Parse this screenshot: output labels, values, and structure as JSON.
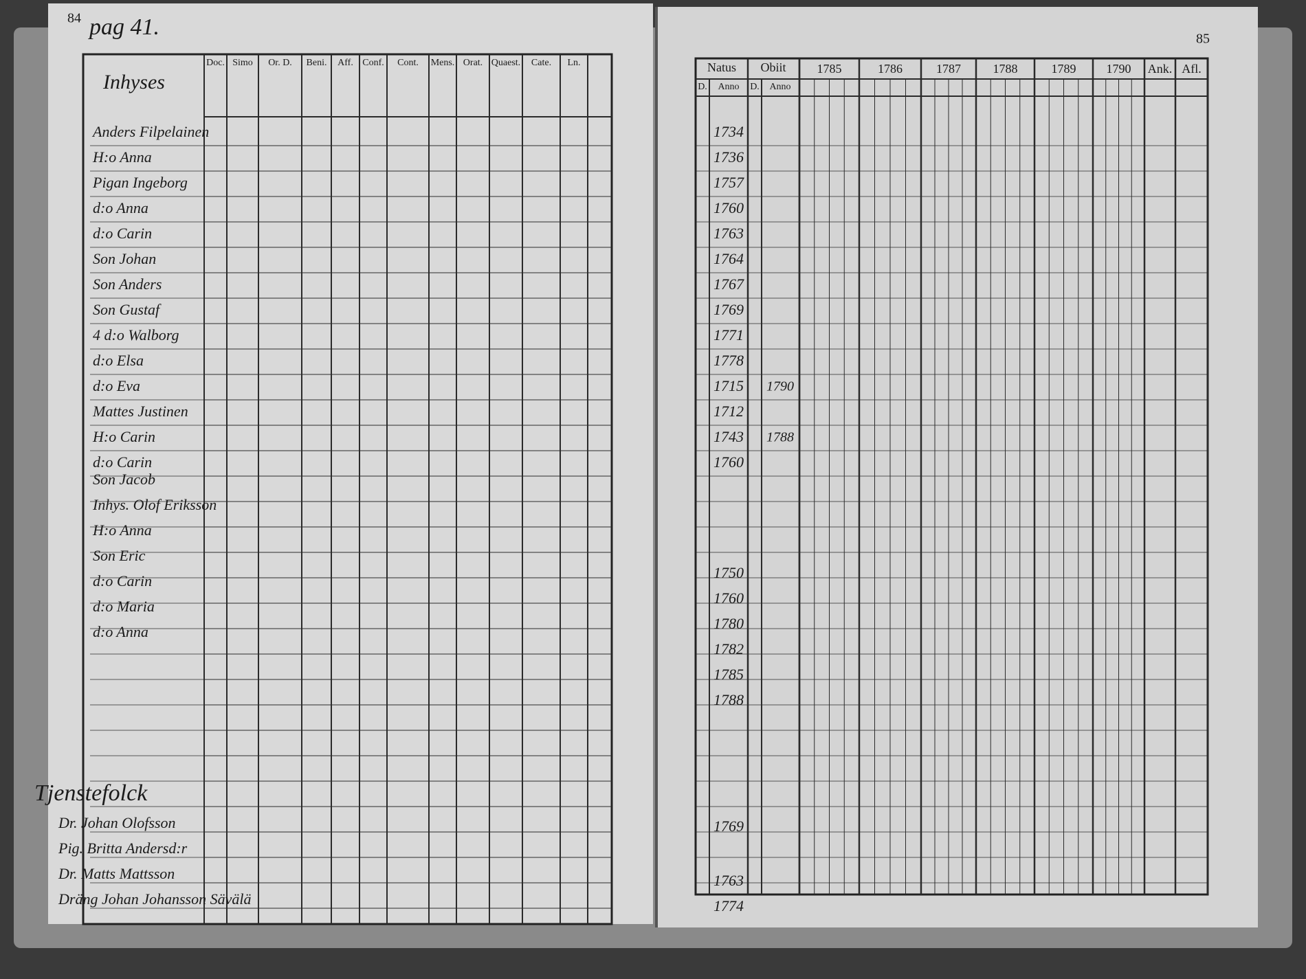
{
  "left_page": {
    "page_number": "84",
    "page_reference": "pag 41.",
    "columns": [
      "Doc.",
      "Simo",
      "Or. D.",
      "Beni.",
      "Aff.",
      "Conf.",
      "Cont.",
      "Mens.",
      "Orat.",
      "Quaest.",
      "Cate.",
      "Ln."
    ],
    "sections": [
      {
        "heading": "Inhyses",
        "rows": [
          "Anders Filpelainen",
          "H:o Anna",
          "Pigan Ingeborg",
          "d:o Anna",
          "d:o Carin",
          "Son Johan",
          "Son Anders",
          "Son Gustaf",
          "4 d:o Walborg",
          "d:o Elsa",
          "d:o Eva",
          "Mattes Justinen",
          "H:o Carin",
          "d:o Carin"
        ]
      },
      {
        "rows": [
          "Son Jacob",
          "Inhys. Olof Eriksson",
          "H:o Anna",
          "Son Eric",
          "d:o Carin",
          "d:o Maria",
          "d:o Anna"
        ]
      },
      {
        "heading": "Tjenstefolck",
        "rows": [
          "Dr. Johan Olofsson",
          "Pig. Britta Andersd:r",
          "Dr. Matts Mattsson",
          "Dräng Johan Johansson Sävälä"
        ]
      }
    ]
  },
  "right_page": {
    "page_number": "85",
    "headers": {
      "natus": "Natus",
      "obiit": "Obiit",
      "day": "D.",
      "year": "Anno"
    },
    "year_columns": [
      "1785",
      "1786",
      "1787",
      "1788",
      "1789",
      "1790",
      "Ank.",
      "Afl."
    ],
    "sections": [
      {
        "rows": [
          {
            "natus": "1734"
          },
          {
            "natus": "1736"
          },
          {
            "natus": "1757"
          },
          {
            "natus": "1760"
          },
          {
            "natus": "1763"
          },
          {
            "natus": "1764"
          },
          {
            "natus": "1767"
          },
          {
            "natus": "1769"
          },
          {
            "natus": "1771"
          },
          {
            "natus": "1778"
          },
          {
            "natus": "1715",
            "obiit": "1790"
          },
          {
            "natus": "1712"
          },
          {
            "natus": "1743",
            "obiit": "1788"
          },
          {
            "natus": "1760"
          }
        ]
      },
      {
        "rows": [
          {
            "natus": "1750"
          },
          {
            "natus": "1760"
          },
          {
            "natus": "1780"
          },
          {
            "natus": "1782"
          },
          {
            "natus": "1785"
          },
          {
            "natus": "1788"
          }
        ]
      },
      {
        "rows": [
          {
            "natus": "1769"
          }
        ]
      },
      {
        "rows": [
          {
            "natus": "1763"
          },
          {
            "natus": "1774"
          }
        ]
      }
    ]
  }
}
